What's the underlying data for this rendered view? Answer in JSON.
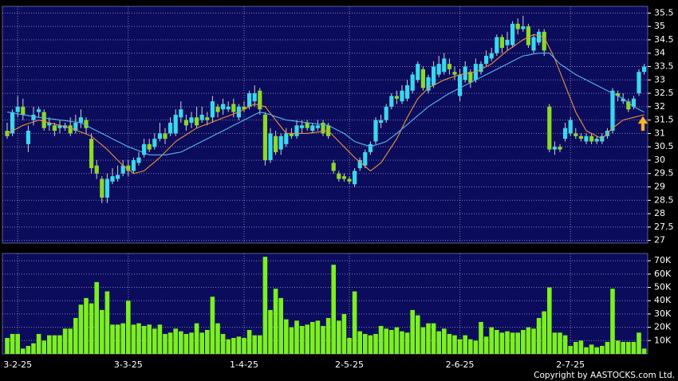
{
  "chart_data": {
    "type": "candlestick",
    "categories": [
      null,
      null,
      "3-2-25",
      null,
      null,
      null,
      null,
      null,
      null,
      null,
      null,
      null,
      null,
      null,
      null,
      null,
      null,
      null,
      null,
      null,
      null,
      null,
      null,
      "3-3-25",
      null,
      null,
      null,
      null,
      null,
      null,
      null,
      null,
      null,
      null,
      null,
      null,
      null,
      null,
      null,
      null,
      null,
      null,
      null,
      null,
      null,
      "1-4-25",
      null,
      null,
      null,
      null,
      null,
      null,
      null,
      null,
      null,
      null,
      null,
      null,
      null,
      null,
      null,
      null,
      null,
      null,
      null,
      "2-5-25",
      null,
      null,
      null,
      null,
      null,
      null,
      null,
      null,
      null,
      null,
      null,
      null,
      null,
      null,
      null,
      null,
      null,
      null,
      null,
      null,
      "2-6-25",
      null,
      null,
      null,
      null,
      null,
      null,
      null,
      null,
      null,
      null,
      null,
      null,
      null,
      null,
      null,
      null,
      null,
      null,
      null,
      null,
      "2-7-25",
      null,
      null,
      null,
      null,
      null,
      null,
      null,
      null,
      null,
      null,
      null,
      null,
      null,
      null
    ],
    "open": [
      31.1,
      31.0,
      31.8,
      32.0,
      30.6,
      31.5,
      31.8,
      31.8,
      31.3,
      31.3,
      31.2,
      31.2,
      31.3,
      31.1,
      31.4,
      31.5,
      30.8,
      29.8,
      29.3,
      28.6,
      29.2,
      29.3,
      29.5,
      29.8,
      29.6,
      29.9,
      30.2,
      30.6,
      30.5,
      30.8,
      31.0,
      31.0,
      31.0,
      31.6,
      31.5,
      31.4,
      31.6,
      31.5,
      31.6,
      31.6,
      32.0,
      31.9,
      31.9,
      32.1,
      31.6,
      32.0,
      32.0,
      32.2,
      32.6,
      31.7,
      30.0,
      30.9,
      30.4,
      30.6,
      31.0,
      30.9,
      31.2,
      31.4,
      31.1,
      31.2,
      31.4,
      31.3,
      29.9,
      29.5,
      29.4,
      29.3,
      29.1,
      29.7,
      29.8,
      30.3,
      30.7,
      31.4,
      31.5,
      32.0,
      32.4,
      32.2,
      32.3,
      32.6,
      33.0,
      33.4,
      32.6,
      32.8,
      33.2,
      33.3,
      33.6,
      33.3,
      32.4,
      33.0,
      33.3,
      33.0,
      33.3,
      33.6,
      33.8,
      34.0,
      34.6,
      34.3,
      34.3,
      35.1,
      34.9,
      35.0,
      34.1,
      34.4,
      34.8,
      32.0,
      30.4,
      30.5,
      30.8,
      31.0,
      31.0,
      30.9,
      30.7,
      30.9,
      30.7,
      30.7,
      30.9,
      31.1,
      32.5,
      32.2,
      32.2,
      32.0,
      32.5,
      33.3
    ],
    "high": [
      31.4,
      31.9,
      32.4,
      32.3,
      31.3,
      32.0,
      32.0,
      31.9,
      31.6,
      31.4,
      31.5,
      31.4,
      31.6,
      31.7,
      31.9,
      31.6,
      31.0,
      30.0,
      29.4,
      29.5,
      29.7,
      29.8,
      30.0,
      30.0,
      30.1,
      30.3,
      30.8,
      30.8,
      31.0,
      31.4,
      31.2,
      31.6,
      31.9,
      32.2,
      31.7,
      31.8,
      32.0,
      32.0,
      31.8,
      32.4,
      32.1,
      32.3,
      32.2,
      32.3,
      32.1,
      32.2,
      32.6,
      32.8,
      32.7,
      31.8,
      31.2,
      31.1,
      31.0,
      31.2,
      31.2,
      31.5,
      31.5,
      31.5,
      31.4,
      31.5,
      31.5,
      31.4,
      30.0,
      29.6,
      29.5,
      29.4,
      29.7,
      30.1,
      30.4,
      30.7,
      31.6,
      31.7,
      32.1,
      32.5,
      32.6,
      32.8,
      33.0,
      33.3,
      33.7,
      33.5,
      33.2,
      33.7,
      33.9,
      34.0,
      33.8,
      33.5,
      33.4,
      33.7,
      33.4,
      33.8,
      33.7,
      34.1,
      34.2,
      34.7,
      34.7,
      34.8,
      35.2,
      35.3,
      35.4,
      35.1,
      34.7,
      34.9,
      34.9,
      32.1,
      30.7,
      30.6,
      31.4,
      31.6,
      31.2,
      31.0,
      31.0,
      31.0,
      30.9,
      31.0,
      31.2,
      32.7,
      32.6,
      32.5,
      32.3,
      32.4,
      33.4,
      33.6
    ],
    "low": [
      30.8,
      30.9,
      31.6,
      31.5,
      30.3,
      31.3,
      31.6,
      31.1,
      31.1,
      30.9,
      31.0,
      31.1,
      30.9,
      31.0,
      31.2,
      31.0,
      29.5,
      29.3,
      28.4,
      28.4,
      29.1,
      29.2,
      29.4,
      29.4,
      29.5,
      29.8,
      30.1,
      30.3,
      30.4,
      30.7,
      30.6,
      30.9,
      30.9,
      31.4,
      31.1,
      31.2,
      31.2,
      31.4,
      31.3,
      31.4,
      31.6,
      31.7,
      31.8,
      31.6,
      31.5,
      31.8,
      31.9,
      32.0,
      31.7,
      29.8,
      29.9,
      30.2,
      30.2,
      30.5,
      30.8,
      30.8,
      31.0,
      31.1,
      31.0,
      31.1,
      30.9,
      30.8,
      29.5,
      29.2,
      29.2,
      29.1,
      29.0,
      29.6,
      29.7,
      30.2,
      30.6,
      31.2,
      31.4,
      31.9,
      32.1,
      32.1,
      32.2,
      32.5,
      32.9,
      32.6,
      32.5,
      32.7,
      33.1,
      33.2,
      33.2,
      33.0,
      32.2,
      32.9,
      32.7,
      32.9,
      33.2,
      33.5,
      33.7,
      33.9,
      34.0,
      34.1,
      34.2,
      34.7,
      34.8,
      34.2,
      34.0,
      34.3,
      33.9,
      30.3,
      30.2,
      30.3,
      30.7,
      30.9,
      30.8,
      30.7,
      30.6,
      30.6,
      30.6,
      30.6,
      30.8,
      31.0,
      32.2,
      32.1,
      31.8,
      31.9,
      32.4,
      33.2
    ],
    "close": [
      30.9,
      31.8,
      32.0,
      31.7,
      31.1,
      31.7,
      31.9,
      31.2,
      31.4,
      31.1,
      31.3,
      31.3,
      31.0,
      31.4,
      31.6,
      31.2,
      29.7,
      29.5,
      28.6,
      29.3,
      29.4,
      29.45,
      29.8,
      29.6,
      30.0,
      30.1,
      30.6,
      30.4,
      30.8,
      31.0,
      30.8,
      31.4,
      31.7,
      31.9,
      31.3,
      31.6,
      31.3,
      31.7,
      31.5,
      32.2,
      31.8,
      32.1,
      32.0,
      31.8,
      32.0,
      31.9,
      32.5,
      32.5,
      31.9,
      30.0,
      31.0,
      30.3,
      30.9,
      31.0,
      30.9,
      31.3,
      31.3,
      31.2,
      31.3,
      31.3,
      31.0,
      30.9,
      29.6,
      29.3,
      29.3,
      29.2,
      29.6,
      30.0,
      30.3,
      30.6,
      31.5,
      31.5,
      32.0,
      32.4,
      32.3,
      32.6,
      32.8,
      33.2,
      33.6,
      32.7,
      33.1,
      33.5,
      33.6,
      33.8,
      33.4,
      33.2,
      33.2,
      33.5,
      32.9,
      33.6,
      33.6,
      33.9,
      34.0,
      34.6,
      34.2,
      34.5,
      35.1,
      34.9,
      35.0,
      34.3,
      34.6,
      34.8,
      34.1,
      30.4,
      30.5,
      30.4,
      31.2,
      31.5,
      30.9,
      30.8,
      30.9,
      30.7,
      30.8,
      30.9,
      31.1,
      32.6,
      32.4,
      32.3,
      31.9,
      32.3,
      33.3,
      33.5
    ],
    "up_color": "#3ad8ee",
    "down_color": "#8cd926",
    "ylim": [
      26.9,
      35.75
    ],
    "yticks": [
      27,
      27.5,
      28,
      28.5,
      29,
      29.5,
      30,
      30.5,
      31,
      31.5,
      32,
      32.5,
      33,
      33.5,
      34,
      34.5,
      35,
      35.5
    ],
    "grid": true,
    "moving_averages": [
      {
        "color": "#e8923a",
        "values": [
          31.0,
          31.1,
          31.2,
          31.3,
          31.37,
          31.43,
          31.5,
          31.45,
          31.4,
          31.35,
          31.3,
          31.25,
          31.2,
          31.13,
          31.05,
          30.98,
          30.9,
          30.73,
          30.57,
          30.4,
          30.2,
          30.0,
          29.8,
          29.65,
          29.5,
          29.55,
          29.6,
          29.77,
          29.93,
          30.1,
          30.3,
          30.5,
          30.7,
          30.83,
          30.95,
          31.08,
          31.2,
          31.28,
          31.35,
          31.43,
          31.5,
          31.58,
          31.65,
          31.73,
          31.8,
          31.9,
          32.0,
          32.1,
          32.05,
          32.0,
          31.75,
          31.5,
          31.25,
          31.0,
          31.0,
          31.0,
          31.0,
          31.0,
          31.03,
          31.05,
          31.08,
          31.1,
          30.9,
          30.7,
          30.5,
          30.3,
          30.1,
          29.93,
          29.77,
          29.6,
          29.75,
          29.9,
          30.2,
          30.5,
          30.8,
          31.2,
          31.6,
          31.95,
          32.3,
          32.5,
          32.7,
          32.8,
          32.9,
          33.0,
          33.07,
          33.13,
          33.2,
          33.23,
          33.27,
          33.3,
          33.4,
          33.5,
          33.6,
          33.77,
          33.93,
          34.1,
          34.23,
          34.37,
          34.5,
          34.6,
          34.7,
          34.65,
          34.6,
          34.2,
          33.8,
          33.3,
          32.8,
          32.3,
          31.8,
          31.45,
          31.1,
          31.0,
          30.9,
          30.8,
          31.0,
          31.2,
          31.35,
          31.5,
          31.55,
          31.6,
          31.65,
          31.7
        ]
      },
      {
        "color": "#55b4ee",
        "values": [
          31.8,
          31.77,
          31.73,
          31.7,
          31.67,
          31.63,
          31.6,
          31.58,
          31.55,
          31.53,
          31.5,
          31.48,
          31.45,
          31.43,
          31.4,
          31.3,
          31.2,
          31.1,
          31.0,
          30.9,
          30.8,
          30.7,
          30.6,
          30.5,
          30.43,
          30.35,
          30.28,
          30.2,
          30.2,
          30.2,
          30.2,
          30.23,
          30.27,
          30.3,
          30.4,
          30.5,
          30.6,
          30.7,
          30.8,
          30.9,
          31.0,
          31.1,
          31.2,
          31.3,
          31.4,
          31.5,
          31.6,
          31.7,
          31.8,
          31.75,
          31.7,
          31.63,
          31.57,
          31.5,
          31.48,
          31.45,
          31.43,
          31.4,
          31.38,
          31.35,
          31.33,
          31.3,
          31.2,
          31.1,
          31.0,
          30.85,
          30.7,
          30.63,
          30.57,
          30.5,
          30.57,
          30.63,
          30.7,
          30.85,
          31.0,
          31.17,
          31.33,
          31.5,
          31.67,
          31.83,
          32.0,
          32.13,
          32.25,
          32.38,
          32.5,
          32.6,
          32.7,
          32.8,
          32.9,
          33.0,
          33.1,
          33.2,
          33.3,
          33.4,
          33.5,
          33.6,
          33.7,
          33.8,
          33.9,
          33.93,
          33.97,
          34.0,
          34.0,
          34.0,
          33.8,
          33.6,
          33.47,
          33.33,
          33.2,
          33.1,
          33.0,
          32.9,
          32.8,
          32.7,
          32.6,
          32.5,
          32.4,
          32.3,
          32.15,
          32.0,
          31.9,
          31.8
        ]
      }
    ],
    "volume": {
      "type": "bar",
      "color": "#7cf01e",
      "values": [
        12000,
        15000,
        15000,
        4000,
        6000,
        8000,
        15000,
        10000,
        14000,
        14000,
        14000,
        19000,
        19000,
        27000,
        37000,
        42000,
        38000,
        54000,
        33000,
        47000,
        22000,
        22000,
        23000,
        40000,
        22000,
        23000,
        21000,
        22000,
        19000,
        22000,
        15000,
        16000,
        19000,
        17000,
        15000,
        16000,
        23000,
        16000,
        18000,
        43000,
        23000,
        15000,
        11000,
        12000,
        13000,
        12000,
        18000,
        14000,
        14000,
        73000,
        33000,
        49000,
        42000,
        26000,
        20000,
        25000,
        21000,
        22000,
        24000,
        25000,
        21000,
        27000,
        67000,
        25000,
        30000,
        12000,
        47000,
        17000,
        15000,
        14000,
        15000,
        21000,
        19000,
        18000,
        20000,
        17000,
        16000,
        33000,
        29000,
        20000,
        23000,
        23000,
        17000,
        19000,
        15000,
        14000,
        11000,
        14000,
        11000,
        10000,
        24000,
        13000,
        20000,
        18000,
        16000,
        17000,
        16000,
        16000,
        18000,
        20000,
        19000,
        27000,
        32000,
        50000,
        16000,
        16000,
        14000,
        6000,
        9000,
        10000,
        5000,
        7000,
        5000,
        6000,
        9000,
        49000,
        10000,
        9000,
        9000,
        9000,
        16000,
        4000
      ],
      "ylim": [
        0,
        75500
      ],
      "yticks": [
        {
          "value": 10000,
          "label": "10K"
        },
        {
          "value": 20000,
          "label": "20K"
        },
        {
          "value": 30000,
          "label": "30K"
        },
        {
          "value": 40000,
          "label": "40K"
        },
        {
          "value": 50000,
          "label": "50K"
        },
        {
          "value": 60000,
          "label": "60K"
        },
        {
          "value": 70000,
          "label": "70K"
        }
      ]
    }
  },
  "footer": "Copyright by AASTOCKS.com Ltd."
}
